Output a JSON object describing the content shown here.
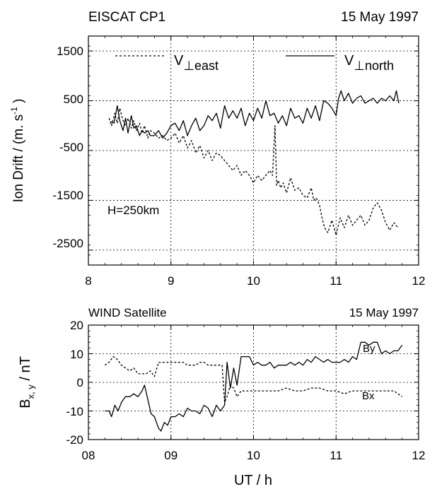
{
  "chart_data": [
    {
      "type": "line",
      "title_left": "EISCAT CP1",
      "title_right": "15 May 1997",
      "ylabel_main": "Ion Drift  / (m. s",
      "ylabel_exp": "-1",
      "ylabel_close": " )",
      "annotation": "H=250km",
      "xlim": [
        8,
        12
      ],
      "ylim": [
        -2800,
        1800
      ],
      "xticks": [
        8,
        9,
        10,
        11,
        12
      ],
      "xtick_labels": [
        "8",
        "9",
        "10",
        "11",
        "12"
      ],
      "yticks": [
        1500,
        500,
        -500,
        -1500,
        -2500
      ],
      "ytick_labels": [
        "1500",
        "500",
        "-500",
        "-1500",
        "-2500"
      ],
      "grid": true,
      "legend": [
        {
          "base": "V",
          "sub": "⊥east",
          "style": "dashed"
        },
        {
          "base": "V",
          "sub": "⊥north",
          "style": "solid"
        }
      ],
      "series": [
        {
          "key": "north",
          "style": "solid",
          "x": [
            8.27,
            8.31,
            8.35,
            8.38,
            8.42,
            8.45,
            8.48,
            8.52,
            8.55,
            8.58,
            8.62,
            8.65,
            8.68,
            8.72,
            8.75,
            8.8,
            8.85,
            8.9,
            8.95,
            9.0,
            9.05,
            9.1,
            9.15,
            9.2,
            9.25,
            9.3,
            9.35,
            9.4,
            9.45,
            9.5,
            9.55,
            9.6,
            9.65,
            9.7,
            9.75,
            9.8,
            9.85,
            9.9,
            9.95,
            10.0,
            10.05,
            10.1,
            10.15,
            10.2,
            10.25,
            10.3,
            10.35,
            10.4,
            10.45,
            10.5,
            10.55,
            10.6,
            10.65,
            10.7,
            10.75,
            10.8,
            10.85,
            10.9,
            10.95,
            11.0,
            11.03,
            11.06,
            11.1,
            11.15,
            11.2,
            11.25,
            11.3,
            11.35,
            11.4,
            11.45,
            11.5,
            11.55,
            11.6,
            11.65,
            11.7,
            11.73,
            11.76
          ],
          "y": [
            80,
            50,
            400,
            100,
            -100,
            150,
            -150,
            200,
            -50,
            0,
            -200,
            -100,
            -150,
            -100,
            -200,
            -200,
            -100,
            -250,
            -150,
            0,
            50,
            -100,
            100,
            -200,
            0,
            150,
            -100,
            0,
            200,
            100,
            250,
            -50,
            400,
            150,
            300,
            150,
            350,
            0,
            250,
            100,
            350,
            150,
            500,
            200,
            250,
            50,
            200,
            0,
            350,
            150,
            200,
            50,
            350,
            150,
            400,
            100,
            500,
            450,
            350,
            200,
            550,
            700,
            500,
            650,
            450,
            550,
            600,
            450,
            500,
            550,
            450,
            550,
            500,
            600,
            500,
            700,
            450
          ]
        },
        {
          "key": "east",
          "style": "dashed",
          "x": [
            8.25,
            8.28,
            8.32,
            8.35,
            8.38,
            8.42,
            8.45,
            8.48,
            8.52,
            8.55,
            8.58,
            8.62,
            8.65,
            8.68,
            8.72,
            8.75,
            8.8,
            8.85,
            8.9,
            8.95,
            9.0,
            9.05,
            9.1,
            9.15,
            9.2,
            9.25,
            9.3,
            9.35,
            9.4,
            9.45,
            9.5,
            9.55,
            9.6,
            9.65,
            9.7,
            9.75,
            9.8,
            9.85,
            9.9,
            9.95,
            10.0,
            10.05,
            10.1,
            10.15,
            10.2,
            10.23,
            10.26,
            10.28,
            10.3,
            10.33,
            10.36,
            10.4,
            10.45,
            10.5,
            10.55,
            10.6,
            10.65,
            10.7,
            10.73,
            10.76,
            10.8,
            10.83,
            10.86,
            10.9,
            10.95,
            11.0,
            11.05,
            11.1,
            11.15,
            11.2,
            11.25,
            11.3,
            11.35,
            11.4,
            11.45,
            11.5,
            11.55,
            11.6,
            11.65,
            11.7,
            11.75
          ],
          "y": [
            150,
            0,
            250,
            50,
            350,
            100,
            0,
            150,
            -50,
            100,
            -100,
            50,
            -150,
            0,
            -250,
            -100,
            -150,
            -250,
            -200,
            -300,
            -250,
            -150,
            -350,
            -200,
            -450,
            -300,
            -550,
            -400,
            -650,
            -500,
            -700,
            -550,
            -600,
            -700,
            -800,
            -900,
            -800,
            -1000,
            -900,
            -1000,
            -1150,
            -1000,
            -1100,
            -1000,
            -900,
            -1000,
            0,
            -1200,
            -1100,
            -1250,
            -1150,
            -1350,
            -1050,
            -1300,
            -1250,
            -1400,
            -1450,
            -1250,
            -1500,
            -1450,
            -1600,
            -1850,
            -2050,
            -2150,
            -1900,
            -2200,
            -1850,
            -2050,
            -1800,
            -2000,
            -1900,
            -1800,
            -2000,
            -1900,
            -1650,
            -1550,
            -1700,
            -1950,
            -2100,
            -1950,
            -2050
          ]
        }
      ]
    },
    {
      "type": "line",
      "title_left": "WIND Satellite",
      "title_right": "15 May 1997",
      "ylabel_base": "B",
      "ylabel_sub": "x, y",
      "ylabel_unit": "  / nT",
      "xlabel": "UT / h",
      "xlim": [
        8,
        12
      ],
      "ylim": [
        -20,
        20
      ],
      "xticks": [
        8,
        9,
        10,
        11,
        12
      ],
      "xtick_labels": [
        "08",
        "09",
        "10",
        "11",
        "12"
      ],
      "yticks": [
        20,
        10,
        0,
        -10,
        -20
      ],
      "ytick_labels": [
        "20",
        "10",
        "0",
        "-10",
        "-20"
      ],
      "grid": true,
      "series": [
        {
          "name": "By",
          "style": "solid",
          "x": [
            8.2,
            8.25,
            8.28,
            8.32,
            8.36,
            8.4,
            8.45,
            8.5,
            8.55,
            8.6,
            8.65,
            8.68,
            8.72,
            8.76,
            8.8,
            8.85,
            8.88,
            8.92,
            8.96,
            9.0,
            9.05,
            9.1,
            9.15,
            9.2,
            9.25,
            9.3,
            9.35,
            9.4,
            9.45,
            9.5,
            9.55,
            9.6,
            9.65,
            9.68,
            9.72,
            9.76,
            9.8,
            9.85,
            9.9,
            9.95,
            10.0,
            10.05,
            10.1,
            10.15,
            10.2,
            10.25,
            10.3,
            10.35,
            10.4,
            10.45,
            10.5,
            10.55,
            10.6,
            10.65,
            10.7,
            10.75,
            10.8,
            10.85,
            10.9,
            10.95,
            11.0,
            11.05,
            11.1,
            11.15,
            11.2,
            11.25,
            11.3,
            11.35,
            11.4,
            11.45,
            11.5,
            11.55,
            11.6,
            11.65,
            11.7,
            11.75,
            11.8
          ],
          "y": [
            -10,
            -10,
            -12,
            -8,
            -10,
            -7,
            -5,
            -5,
            -4,
            -5,
            -3,
            -1,
            -6,
            -11,
            -12,
            -16,
            -17,
            -14,
            -15,
            -12,
            -12,
            -11,
            -12,
            -9,
            -10,
            -10,
            -11,
            -8,
            -9,
            -12,
            -8,
            -10,
            -8,
            7,
            -2,
            5,
            -1,
            9,
            9,
            9,
            6,
            7,
            6,
            6,
            7,
            5,
            6,
            6,
            6,
            7,
            6,
            7,
            6,
            8,
            7,
            9,
            8,
            7,
            8,
            7,
            7,
            7,
            8,
            7,
            9,
            8,
            14,
            14,
            13,
            14,
            14,
            10,
            11,
            10,
            11,
            11,
            13
          ]
        },
        {
          "name": "Bx",
          "style": "dashed",
          "x": [
            8.2,
            8.25,
            8.3,
            8.35,
            8.4,
            8.45,
            8.5,
            8.55,
            8.6,
            8.65,
            8.7,
            8.75,
            8.8,
            8.85,
            8.9,
            8.95,
            9.0,
            9.05,
            9.1,
            9.15,
            9.2,
            9.25,
            9.3,
            9.35,
            9.4,
            9.45,
            9.5,
            9.55,
            9.6,
            9.62,
            9.65,
            9.68,
            9.72,
            9.76,
            9.8,
            9.85,
            9.9,
            9.95,
            10.0,
            10.1,
            10.2,
            10.3,
            10.4,
            10.5,
            10.6,
            10.7,
            10.8,
            10.9,
            11.0,
            11.1,
            11.2,
            11.3,
            11.4,
            11.5,
            11.6,
            11.7,
            11.8
          ],
          "y": [
            6,
            7,
            9,
            8,
            6,
            5,
            4,
            5,
            3,
            3,
            3,
            4,
            2,
            7,
            7,
            7,
            7,
            7,
            7,
            7,
            6,
            6,
            6,
            7,
            7,
            6,
            6,
            6,
            6,
            6,
            -7,
            -5,
            -1,
            -2,
            -5,
            -3,
            -3,
            -3,
            -3,
            -3,
            -3,
            -3,
            -2,
            -3,
            -3,
            -2,
            -2,
            -3,
            -3,
            -4,
            -3,
            -3,
            -3,
            -3,
            -3,
            -3,
            -5
          ]
        }
      ]
    }
  ]
}
